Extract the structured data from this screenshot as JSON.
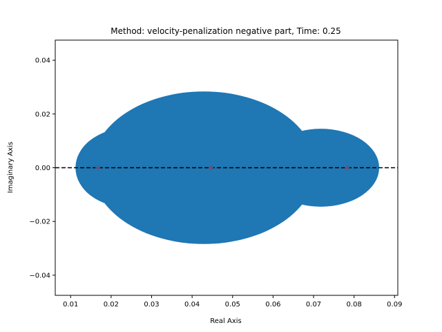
{
  "chart_data": {
    "type": "scatter",
    "title": "Method: velocity-penalization negative part, Time: 0.25",
    "xlabel": "Real Axis",
    "ylabel": "Imaginary Axis",
    "xlim": [
      0.0062,
      0.0908
    ],
    "ylim": [
      -0.0475,
      0.0475
    ],
    "xticks": [
      0.01,
      0.02,
      0.03,
      0.04,
      0.05,
      0.06,
      0.07,
      0.08,
      0.09
    ],
    "xtick_labels": [
      "0.01",
      "0.02",
      "0.03",
      "0.04",
      "0.05",
      "0.06",
      "0.07",
      "0.08",
      "0.09"
    ],
    "yticks": [
      -0.04,
      -0.02,
      0.0,
      0.02,
      0.04
    ],
    "ytick_labels": [
      "−0.04",
      "−0.02",
      "0.00",
      "0.02",
      "0.04"
    ],
    "grid": false,
    "fill_color": "#1f77b4",
    "marker_color": "#d62728",
    "reference_line": {
      "y": 0.0,
      "style": "dashed",
      "color": "#000000"
    },
    "regions": [
      {
        "center": [
          0.0243,
          0.0
        ],
        "radius_x": 0.0131,
        "radius_y": 0.0148
      },
      {
        "center": [
          0.0429,
          0.0
        ],
        "radius_x": 0.0277,
        "radius_y": 0.0284
      },
      {
        "center": [
          0.0718,
          0.0
        ],
        "radius_x": 0.0144,
        "radius_y": 0.0145
      }
    ],
    "points": [
      {
        "x": 0.0167,
        "y": 0.0
      },
      {
        "x": 0.0447,
        "y": 0.0
      },
      {
        "x": 0.0783,
        "y": 0.0
      }
    ]
  }
}
